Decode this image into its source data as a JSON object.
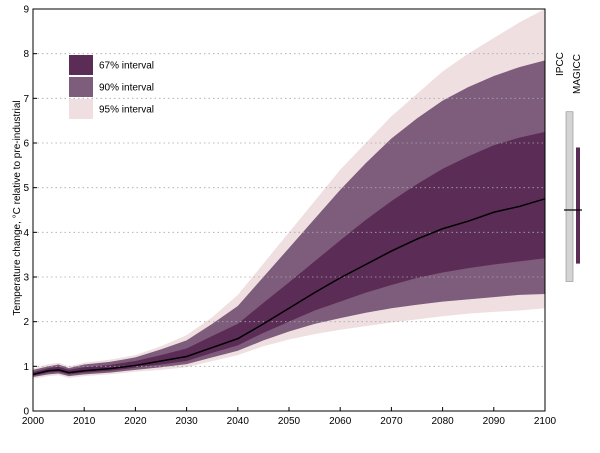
{
  "chart_data": {
    "type": "area",
    "xlabel": "",
    "ylabel": "Temperature change, °C relative to pre-industrial",
    "xlim": [
      2000,
      2100
    ],
    "ylim": [
      0,
      9
    ],
    "x_ticks": [
      2000,
      2010,
      2020,
      2030,
      2040,
      2050,
      2060,
      2070,
      2080,
      2090,
      2100
    ],
    "y_ticks": [
      0,
      1,
      2,
      3,
      4,
      5,
      6,
      7,
      8,
      9
    ],
    "grid": "horizontal dotted",
    "x": [
      2000,
      2003,
      2005,
      2007,
      2010,
      2015,
      2020,
      2025,
      2030,
      2035,
      2040,
      2045,
      2050,
      2055,
      2060,
      2065,
      2070,
      2075,
      2080,
      2085,
      2090,
      2095,
      2100
    ],
    "median": [
      0.82,
      0.9,
      0.92,
      0.86,
      0.9,
      0.95,
      1.02,
      1.12,
      1.22,
      1.42,
      1.62,
      1.95,
      2.3,
      2.65,
      2.98,
      3.28,
      3.58,
      3.85,
      4.08,
      4.25,
      4.45,
      4.58,
      4.75
    ],
    "bands": [
      {
        "name": "95% interval",
        "color": "#efdfe0",
        "lower": [
          0.72,
          0.78,
          0.8,
          0.74,
          0.78,
          0.82,
          0.88,
          0.92,
          0.98,
          1.12,
          1.25,
          1.45,
          1.6,
          1.72,
          1.82,
          1.9,
          1.98,
          2.05,
          2.12,
          2.18,
          2.22,
          2.25,
          2.3
        ],
        "upper": [
          0.95,
          1.05,
          1.08,
          1.0,
          1.08,
          1.15,
          1.25,
          1.45,
          1.7,
          2.1,
          2.6,
          3.3,
          4.0,
          4.7,
          5.4,
          6.0,
          6.6,
          7.1,
          7.6,
          8.0,
          8.35,
          8.7,
          9.0
        ]
      },
      {
        "name": "90% interval",
        "color": "#7e5c7b",
        "lower": [
          0.76,
          0.82,
          0.84,
          0.78,
          0.82,
          0.86,
          0.92,
          0.98,
          1.05,
          1.2,
          1.35,
          1.58,
          1.78,
          1.95,
          2.08,
          2.2,
          2.3,
          2.38,
          2.45,
          2.5,
          2.55,
          2.6,
          2.62
        ],
        "upper": [
          0.92,
          1.0,
          1.04,
          0.96,
          1.04,
          1.1,
          1.2,
          1.38,
          1.58,
          1.95,
          2.35,
          3.0,
          3.65,
          4.3,
          4.95,
          5.55,
          6.1,
          6.55,
          6.95,
          7.25,
          7.5,
          7.7,
          7.85
        ]
      },
      {
        "name": "67% interval",
        "color": "#5b2c56",
        "lower": [
          0.79,
          0.86,
          0.88,
          0.82,
          0.86,
          0.9,
          0.97,
          1.04,
          1.12,
          1.3,
          1.47,
          1.75,
          2.0,
          2.25,
          2.45,
          2.65,
          2.82,
          2.98,
          3.1,
          3.2,
          3.28,
          3.35,
          3.42
        ],
        "upper": [
          0.87,
          0.96,
          0.99,
          0.92,
          0.98,
          1.03,
          1.12,
          1.25,
          1.4,
          1.68,
          1.95,
          2.42,
          2.88,
          3.35,
          3.82,
          4.28,
          4.7,
          5.08,
          5.42,
          5.7,
          5.95,
          6.12,
          6.25
        ]
      }
    ],
    "legend": {
      "position": "top-left",
      "items": [
        {
          "label": "67% interval",
          "color": "#5b2c56"
        },
        {
          "label": "90% interval",
          "color": "#7e5c7b"
        },
        {
          "label": "95% interval",
          "color": "#efdfe0"
        }
      ]
    },
    "side_bars": [
      {
        "label": "IPCC",
        "low": 2.9,
        "high": 6.7,
        "mid": 4.5,
        "color": "#d4d4d4"
      },
      {
        "label": "MAGICC",
        "low": 3.3,
        "high": 5.9,
        "mid": 4.5,
        "color": "#5b2c56"
      }
    ]
  }
}
